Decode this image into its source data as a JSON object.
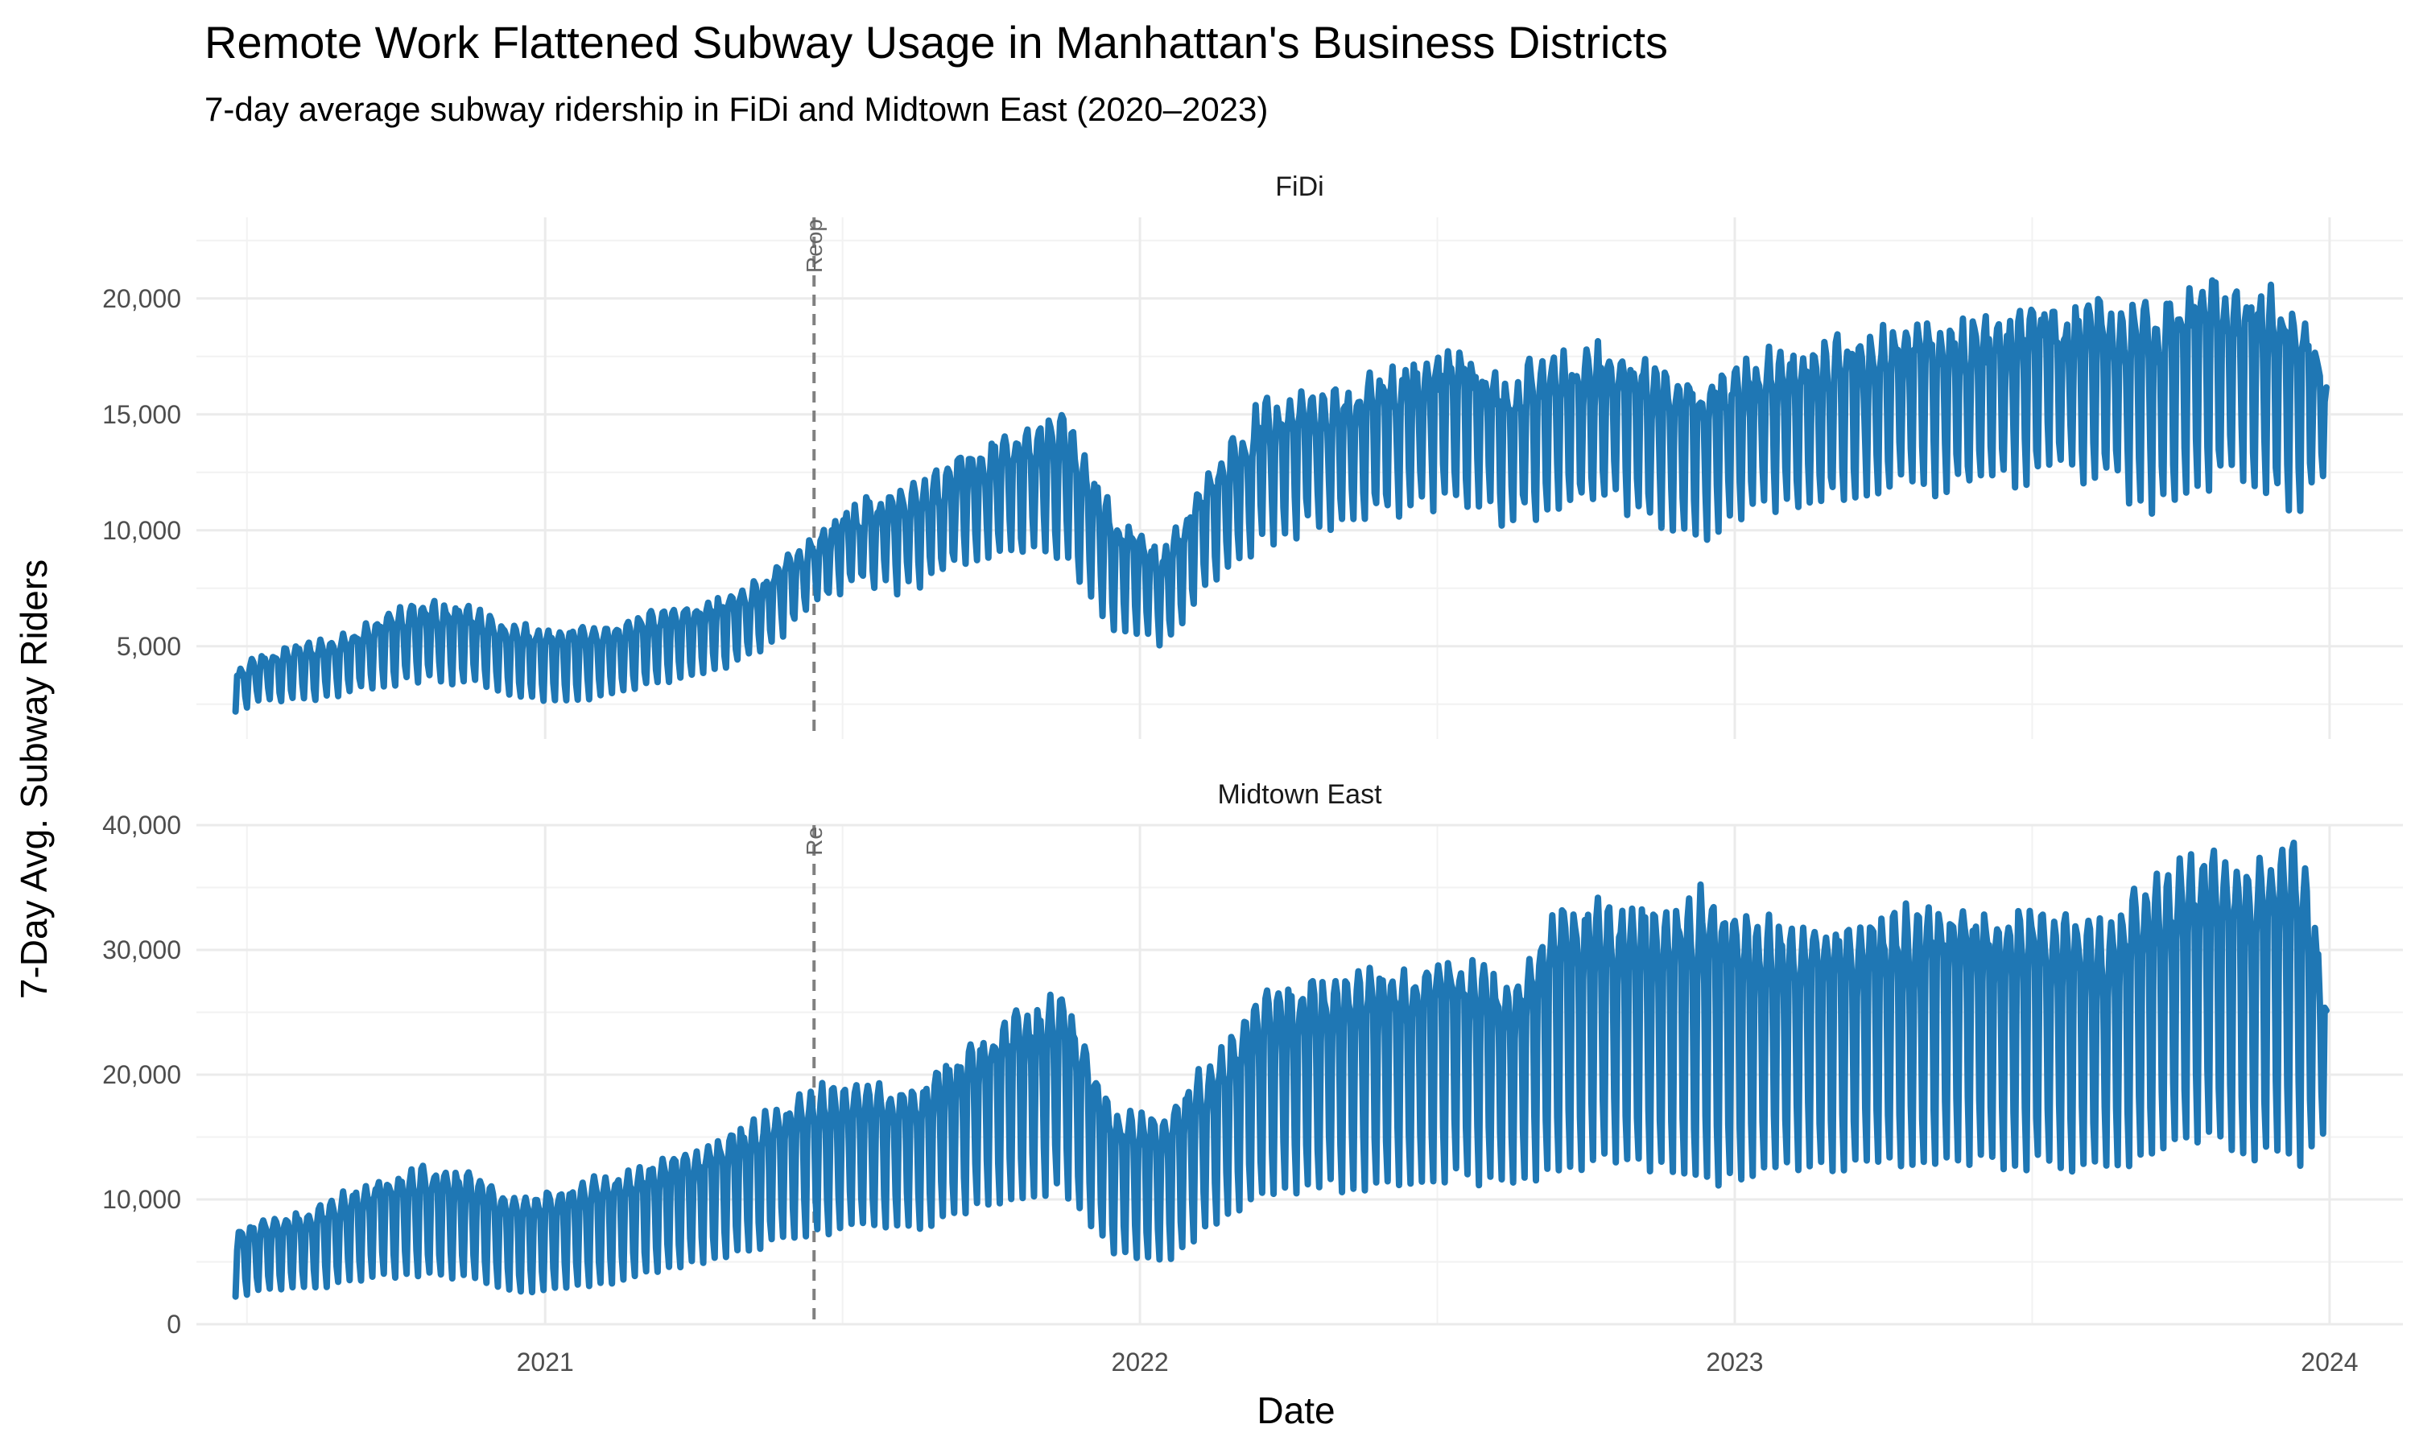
{
  "chart_data": {
    "type": "line",
    "title": "Remote Work Flattened Subway Usage in Manhattan's Business Districts",
    "subtitle": "7-day average subway ridership in FiDi and Midtown East (2020–2023)",
    "xlabel": "Date",
    "ylabel": "7-Day Avg. Subway Riders",
    "x_ticks": [
      "2021",
      "2022",
      "2023",
      "2024"
    ],
    "x_tick_dates": [
      "2021-01-01",
      "2022-01-01",
      "2023-01-01",
      "2024-01-01"
    ],
    "xlim": [
      "2020-06-01",
      "2024-02-15"
    ],
    "grid": true,
    "legend": "none",
    "series_color": "#1f77b4",
    "annotation": {
      "date": "2021-06-15",
      "top_label": "Reop",
      "bottom_label": "Re",
      "style": "dashed",
      "color": "#808080"
    },
    "facets": [
      {
        "name": "FiDi",
        "y_ticks": [
          "5,000",
          "10,000",
          "15,000",
          "20,000"
        ],
        "y_tick_values": [
          5000,
          10000,
          15000,
          20000
        ],
        "ylim": [
          1000,
          23500
        ],
        "series": [
          {
            "x": [
              "2020-06-25",
              "2020-07-15",
              "2020-08-15",
              "2020-09-15",
              "2020-10-15",
              "2020-11-15",
              "2020-12-15",
              "2021-01-15",
              "2021-02-15",
              "2021-03-15",
              "2021-04-15",
              "2021-05-15",
              "2021-06-15",
              "2021-07-15",
              "2021-08-15",
              "2021-09-15",
              "2021-10-15",
              "2021-11-15",
              "2021-12-15",
              "2022-01-15",
              "2022-02-15",
              "2022-03-15",
              "2022-04-15",
              "2022-05-15",
              "2022-06-15",
              "2022-07-15",
              "2022-08-15",
              "2022-09-15",
              "2022-10-15",
              "2022-11-15",
              "2022-12-15",
              "2023-01-15",
              "2023-02-15",
              "2023-03-15",
              "2023-04-15",
              "2023-05-15",
              "2023-06-15",
              "2023-07-15",
              "2023-08-15",
              "2023-09-15",
              "2023-10-15",
              "2023-11-15",
              "2023-12-15",
              "2023-12-30"
            ],
            "weekday": [
              3900,
              4600,
              5100,
              5900,
              6700,
              6500,
              5700,
              5600,
              5800,
              6400,
              6800,
              7700,
              9600,
              11000,
              11600,
              12900,
              13700,
              14500,
              10500,
              9000,
              12500,
              14900,
              15400,
              15800,
              16800,
              17500,
              16300,
              17200,
              17600,
              16800,
              16200,
              17000,
              17300,
              17900,
              18600,
              18400,
              18600,
              19300,
              19300,
              19000,
              20400,
              20100,
              19200,
              16200
            ],
            "weekend": [
              2300,
              2700,
              2800,
              3300,
              3600,
              3500,
              2800,
              2700,
              3000,
              3600,
              4000,
              4700,
              6800,
              7800,
              7500,
              8600,
              9100,
              9000,
              6000,
              5000,
              7800,
              9600,
              10300,
              10600,
              11000,
              11600,
              10500,
              11100,
              11400,
              10600,
              9900,
              10900,
              11400,
              11800,
              12100,
              11900,
              12200,
              12500,
              12400,
              11100,
              12300,
              12200,
              10800,
              12800
            ]
          }
        ]
      },
      {
        "name": "Midtown East",
        "y_ticks": [
          "0",
          "10,000",
          "20,000",
          "30,000",
          "40,000"
        ],
        "y_tick_values": [
          0,
          10000,
          20000,
          30000,
          40000
        ],
        "ylim": [
          0,
          40000
        ],
        "series": [
          {
            "x": [
              "2020-06-25",
              "2020-07-15",
              "2020-08-15",
              "2020-09-15",
              "2020-10-15",
              "2020-11-15",
              "2020-12-15",
              "2021-01-15",
              "2021-02-15",
              "2021-03-15",
              "2021-04-15",
              "2021-05-15",
              "2021-06-15",
              "2021-07-15",
              "2021-08-15",
              "2021-09-15",
              "2021-10-15",
              "2021-11-15",
              "2021-12-15",
              "2022-01-15",
              "2022-02-15",
              "2022-03-15",
              "2022-04-15",
              "2022-05-15",
              "2022-06-15",
              "2022-07-15",
              "2022-08-15",
              "2022-09-15",
              "2022-10-15",
              "2022-11-15",
              "2022-12-15",
              "2023-01-15",
              "2023-02-15",
              "2023-03-15",
              "2023-04-15",
              "2023-05-15",
              "2023-06-15",
              "2023-07-15",
              "2023-08-15",
              "2023-09-15",
              "2023-10-15",
              "2023-11-15",
              "2023-12-15",
              "2023-12-30"
            ],
            "weekday": [
              7200,
              8200,
              9200,
              11200,
              12200,
              11800,
              9800,
              10800,
              11800,
              12800,
              14300,
              16300,
              18300,
              19000,
              18500,
              21500,
              24500,
              26000,
              16500,
              16000,
              21000,
              25300,
              26800,
              27500,
              28300,
              29200,
              26800,
              32500,
              33200,
              32400,
              33800,
              31500,
              31600,
              31500,
              32200,
              33100,
              32600,
              32300,
              31300,
              34500,
              36500,
              35800,
              37500,
              26000
            ],
            "weekend": [
              2300,
              2800,
              3000,
              3800,
              4000,
              3800,
              2500,
              3000,
              3500,
              4500,
              5300,
              6300,
              7500,
              7800,
              7600,
              9300,
              10500,
              10900,
              5800,
              5000,
              8000,
              10300,
              11000,
              11200,
              11600,
              12000,
              11200,
              12800,
              13100,
              12600,
              11300,
              12200,
              12800,
              12600,
              12900,
              13100,
              13000,
              13000,
              12500,
              13600,
              15000,
              13800,
              13200,
              16000
            ]
          }
        ]
      }
    ]
  }
}
